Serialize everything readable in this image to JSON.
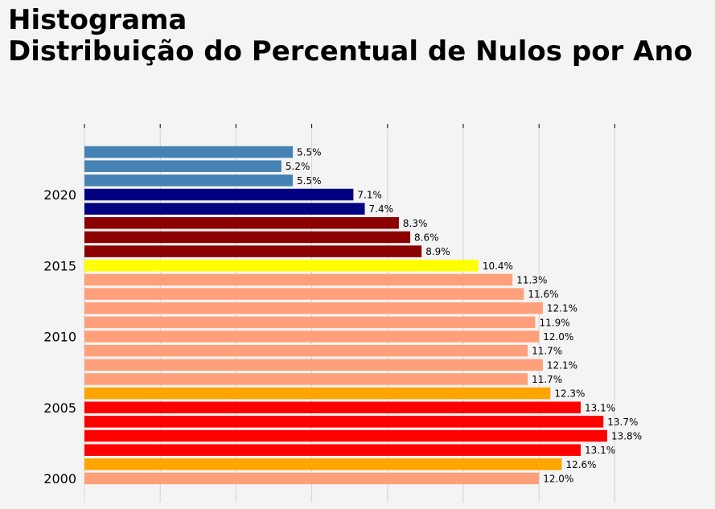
{
  "chart_data": {
    "type": "bar",
    "orientation": "horizontal",
    "title_line1": "Histograma",
    "title_line2": "Distribuição do Percentual de Nulos por Ano",
    "xlabel": "",
    "ylabel": "",
    "xlim": [
      0,
      20
    ],
    "x_gridlines": [
      0,
      2,
      4,
      6,
      8,
      10,
      12,
      14
    ],
    "y_ticks": [
      2000,
      2005,
      2010,
      2015,
      2020
    ],
    "y_tick_labels": [
      "2000",
      "2005",
      "2010",
      "2015",
      "2020"
    ],
    "grid": "vertical",
    "bars": [
      {
        "year": 2000,
        "value": 12.0,
        "label": "12.0%",
        "color": "#ffa07a"
      },
      {
        "year": 2001,
        "value": 12.6,
        "label": "12.6%",
        "color": "#ffa500"
      },
      {
        "year": 2002,
        "value": 13.1,
        "label": "13.1%",
        "color": "#ff0000"
      },
      {
        "year": 2003,
        "value": 13.8,
        "label": "13.8%",
        "color": "#ff0000"
      },
      {
        "year": 2004,
        "value": 13.7,
        "label": "13.7%",
        "color": "#ff0000"
      },
      {
        "year": 2005,
        "value": 13.1,
        "label": "13.1%",
        "color": "#ff0000"
      },
      {
        "year": 2006,
        "value": 12.3,
        "label": "12.3%",
        "color": "#ffa500"
      },
      {
        "year": 2007,
        "value": 11.7,
        "label": "11.7%",
        "color": "#ffa07a"
      },
      {
        "year": 2008,
        "value": 12.1,
        "label": "12.1%",
        "color": "#ffa07a"
      },
      {
        "year": 2009,
        "value": 11.7,
        "label": "11.7%",
        "color": "#ffa07a"
      },
      {
        "year": 2010,
        "value": 12.0,
        "label": "12.0%",
        "color": "#ffa07a"
      },
      {
        "year": 2011,
        "value": 11.9,
        "label": "11.9%",
        "color": "#ffa07a"
      },
      {
        "year": 2012,
        "value": 12.1,
        "label": "12.1%",
        "color": "#ffa07a"
      },
      {
        "year": 2013,
        "value": 11.6,
        "label": "11.6%",
        "color": "#ffa07a"
      },
      {
        "year": 2014,
        "value": 11.3,
        "label": "11.3%",
        "color": "#ffa07a"
      },
      {
        "year": 2015,
        "value": 10.4,
        "label": "10.4%",
        "color": "#ffff00"
      },
      {
        "year": 2016,
        "value": 8.9,
        "label": "8.9%",
        "color": "#8b0000"
      },
      {
        "year": 2017,
        "value": 8.6,
        "label": "8.6%",
        "color": "#8b0000"
      },
      {
        "year": 2018,
        "value": 8.3,
        "label": "8.3%",
        "color": "#8b0000"
      },
      {
        "year": 2019,
        "value": 7.4,
        "label": "7.4%",
        "color": "#000080"
      },
      {
        "year": 2020,
        "value": 7.1,
        "label": "7.1%",
        "color": "#000080"
      },
      {
        "year": 2021,
        "value": 5.5,
        "label": "5.5%",
        "color": "#4682b4"
      },
      {
        "year": 2022,
        "value": 5.2,
        "label": "5.2%",
        "color": "#4682b4"
      },
      {
        "year": 2023,
        "value": 5.5,
        "label": "5.5%",
        "color": "#4682b4"
      }
    ],
    "colors": {
      "background": "#f4f4f4",
      "grid": "#d3d3d3",
      "tick": "#000000"
    }
  }
}
